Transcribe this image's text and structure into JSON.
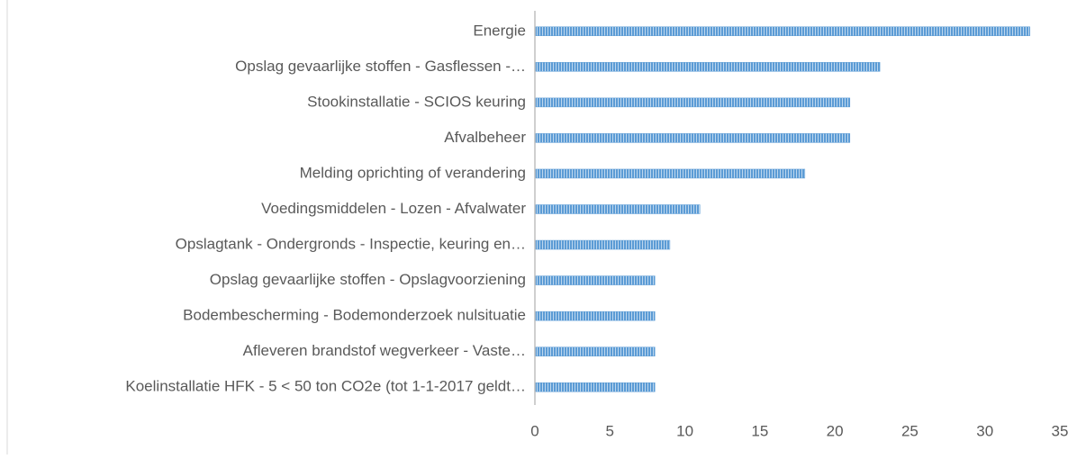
{
  "chart_data": {
    "type": "bar",
    "orientation": "horizontal",
    "categories": [
      "Energie",
      "Opslag gevaarlijke stoffen - Gasflessen -…",
      "Stookinstallatie - SCIOS keuring",
      "Afvalbeheer",
      "Melding oprichting of verandering",
      "Voedingsmiddelen - Lozen - Afvalwater",
      "Opslagtank - Ondergronds - Inspectie, keuring en…",
      "Opslag gevaarlijke stoffen - Opslagvoorziening",
      "Bodembescherming - Bodemonderzoek nulsituatie",
      "Afleveren brandstof wegverkeer - Vaste…",
      "Koelinstallatie HFK - 5 < 50 ton CO2e (tot 1-1-2017 geldt…"
    ],
    "values": [
      33,
      23,
      21,
      21,
      18,
      11,
      9,
      8,
      8,
      8,
      8
    ],
    "color": "#5b9bd5",
    "xlim": [
      0,
      35
    ],
    "xticks": [
      0,
      5,
      10,
      15,
      20,
      25,
      30,
      35
    ],
    "grid": false
  }
}
